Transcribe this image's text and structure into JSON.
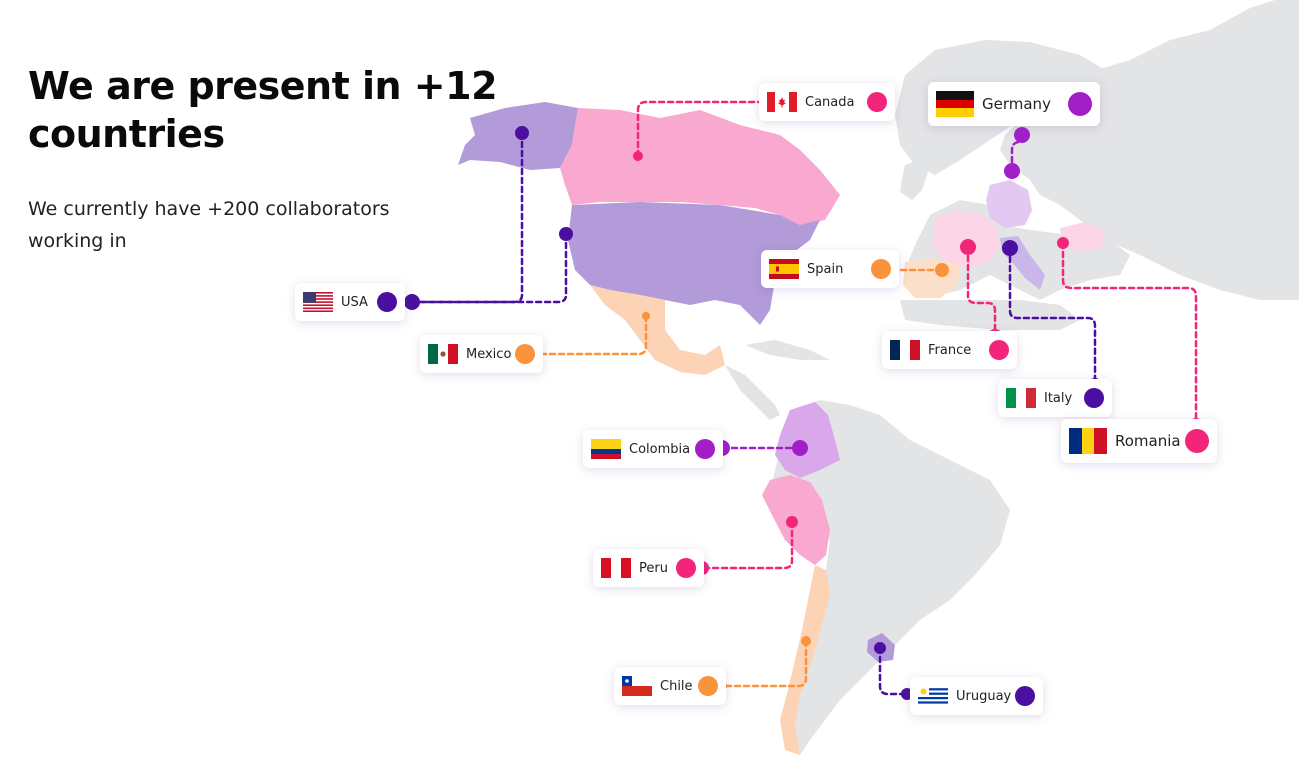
{
  "headline": "We are present in +12 countries",
  "subtitle": "We currently have +200 collaborators working in",
  "colors": {
    "purple_dark": "#4a0fa0",
    "purple_mid": "#a21fc8",
    "pink": "#f2257a",
    "orange": "#fb923c",
    "land_gray": "#e3e4e6",
    "lavender": "#b39ad8",
    "light_pink": "#f9a8cf",
    "peach": "#fcd3b4",
    "light_purple": "#d9a8ea"
  },
  "countries": [
    {
      "id": "canada",
      "label": "Canada",
      "color": "#f2257a",
      "flag": "canada-flag-icon"
    },
    {
      "id": "germany",
      "label": "Germany",
      "color": "#a21fc8",
      "flag": "germany-flag-icon"
    },
    {
      "id": "usa",
      "label": "USA",
      "color": "#4a0fa0",
      "flag": "usa-flag-icon"
    },
    {
      "id": "spain",
      "label": "Spain",
      "color": "#fb923c",
      "flag": "spain-flag-icon"
    },
    {
      "id": "mexico",
      "label": "Mexico",
      "color": "#fb923c",
      "flag": "mexico-flag-icon"
    },
    {
      "id": "france",
      "label": "France",
      "color": "#f2257a",
      "flag": "france-flag-icon"
    },
    {
      "id": "italy",
      "label": "Italy",
      "color": "#4a0fa0",
      "flag": "italy-flag-icon"
    },
    {
      "id": "romania",
      "label": "Romania",
      "color": "#f2257a",
      "flag": "romania-flag-icon"
    },
    {
      "id": "colombia",
      "label": "Colombia",
      "color": "#a21fc8",
      "flag": "colombia-flag-icon"
    },
    {
      "id": "peru",
      "label": "Peru",
      "color": "#f2257a",
      "flag": "peru-flag-icon"
    },
    {
      "id": "chile",
      "label": "Chile",
      "color": "#fb923c",
      "flag": "chile-flag-icon"
    },
    {
      "id": "uruguay",
      "label": "Uruguay",
      "color": "#4a0fa0",
      "flag": "uruguay-flag-icon"
    }
  ]
}
